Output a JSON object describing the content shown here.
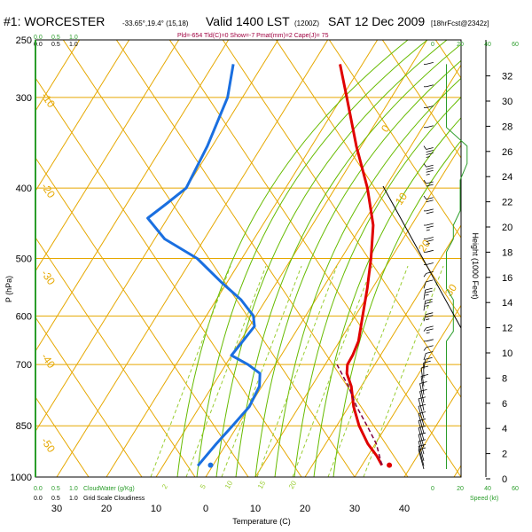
{
  "header": {
    "station": "#1: WORCESTER",
    "coords": "-33.65°,19.4° (15,18)",
    "valid": "Valid 1400 LST",
    "utc": "(1200Z)",
    "date": "SAT 12 Dec 2009",
    "forecast": "[18hrFcst@2342z]",
    "indices": "Pld=-654 Tld(C)=0 Show=-7 Pmat(mm)=2 Cape(J)= 75"
  },
  "colors": {
    "isotherm": "#e6a800",
    "dry_adiabat": "#e6a800",
    "moist_adiabat": "#66bb00",
    "mixing_ratio": "#9acd32",
    "temperature": "#e00000",
    "dewpoint": "#1a6fe0",
    "parcel": "#800040",
    "height_axis": "#000000",
    "speed_line": "#2a9d2a",
    "cloud_scale": "#2a9d2a"
  },
  "axes": {
    "pressure_label": "P (hPa)",
    "temperature_label": "Temperature (C)",
    "height_label": "Height (1000 Feet)",
    "speed_label": "Speed (kt)",
    "cloudwater_label": "CloudWater (g/Kg)",
    "cloudiness_label": "Grid Scale Cloudiness",
    "pressure_ticks": [
      "250",
      "300",
      "400",
      "500",
      "600",
      "700",
      "850",
      "1000"
    ],
    "temperature_ticks": [
      "30",
      "20",
      "10",
      "0",
      "10",
      "20",
      "30",
      "40"
    ],
    "height_ticks": [
      "32",
      "30",
      "28",
      "26",
      "24",
      "22",
      "20",
      "18",
      "16",
      "14",
      "12",
      "10",
      "8",
      "6",
      "4",
      "2",
      "0"
    ],
    "speed_ticks": [
      "0",
      "20",
      "40",
      "60"
    ],
    "cloud_ticks_top": [
      "0.0",
      "0.5",
      "1.0"
    ],
    "cloud_ticks_bottom": [
      "0.0",
      "0.5",
      "1.0"
    ]
  },
  "isotherm_labels": [
    "0",
    "10",
    "20",
    "30",
    "-10",
    "-20",
    "-30",
    "-40",
    "-50"
  ],
  "mixing_labels": [
    "2",
    "5",
    "10",
    "15",
    "20"
  ],
  "chart_data": {
    "type": "line",
    "title": "#1: WORCESTER Valid 1400 LST SAT 12 Dec 2009",
    "xlabel": "Temperature (C)",
    "ylabel": "P (hPa)",
    "y_scale": "log",
    "ylim": [
      1000,
      250
    ],
    "xlim": [
      -35,
      45
    ],
    "series": [
      {
        "name": "Temperature",
        "pressure": [
          963,
          935,
          900,
          850,
          800,
          750,
          720,
          700,
          680,
          650,
          600,
          550,
          500,
          450,
          400,
          350,
          300,
          270
        ],
        "values": [
          34,
          31.8,
          28.5,
          24.5,
          21,
          18,
          15.5,
          14.5,
          14.4,
          13.8,
          11.5,
          9,
          6,
          2.3,
          -3.5,
          -11,
          -19,
          -24.5
        ]
      },
      {
        "name": "Dewpoint",
        "pressure": [
          965,
          900,
          850,
          800,
          750,
          720,
          700,
          680,
          650,
          620,
          600,
          570,
          540,
          500,
          470,
          440,
          420,
          400,
          350,
          300,
          270
        ],
        "values": [
          -3,
          -2,
          -1,
          0,
          -0.5,
          -2,
          -5.5,
          -10,
          -9.5,
          -9,
          -10.5,
          -15,
          -21,
          -29,
          -38,
          -44,
          -42,
          -40,
          -41,
          -43,
          -46
        ]
      },
      {
        "name": "Parcel",
        "pressure": [
          963,
          900,
          850,
          800,
          750,
          700
        ],
        "values": [
          34,
          30.2,
          26.1,
          21.6,
          17.4,
          12.4
        ]
      }
    ],
    "surface_temperature": 35.5,
    "surface_dewpoint": -0.5,
    "wind_barbs": {
      "pressure": [
        975,
        965,
        950,
        930,
        910,
        890,
        870,
        850,
        830,
        810,
        790,
        770,
        750,
        730,
        710,
        690,
        670,
        650,
        630,
        610,
        590,
        570,
        550,
        530,
        510,
        490,
        470,
        450,
        430,
        410,
        390,
        370,
        350,
        330,
        310,
        290,
        270
      ],
      "speed_kt": [
        10,
        10,
        10,
        10,
        10,
        10,
        10,
        10,
        10,
        10,
        10,
        10,
        10,
        10,
        10,
        10,
        10,
        10,
        15,
        15,
        15,
        15,
        10,
        10,
        10,
        10,
        15,
        15,
        20,
        20,
        20,
        25,
        25,
        10,
        10,
        10,
        10
      ],
      "direction_deg": [
        180,
        180,
        180,
        180,
        180,
        180,
        180,
        180,
        180,
        190,
        190,
        200,
        200,
        220,
        240,
        250,
        260,
        270,
        260,
        250,
        240,
        240,
        250,
        260,
        270,
        270,
        270,
        270,
        270,
        280,
        280,
        280,
        280,
        270,
        270,
        270,
        270
      ]
    }
  }
}
